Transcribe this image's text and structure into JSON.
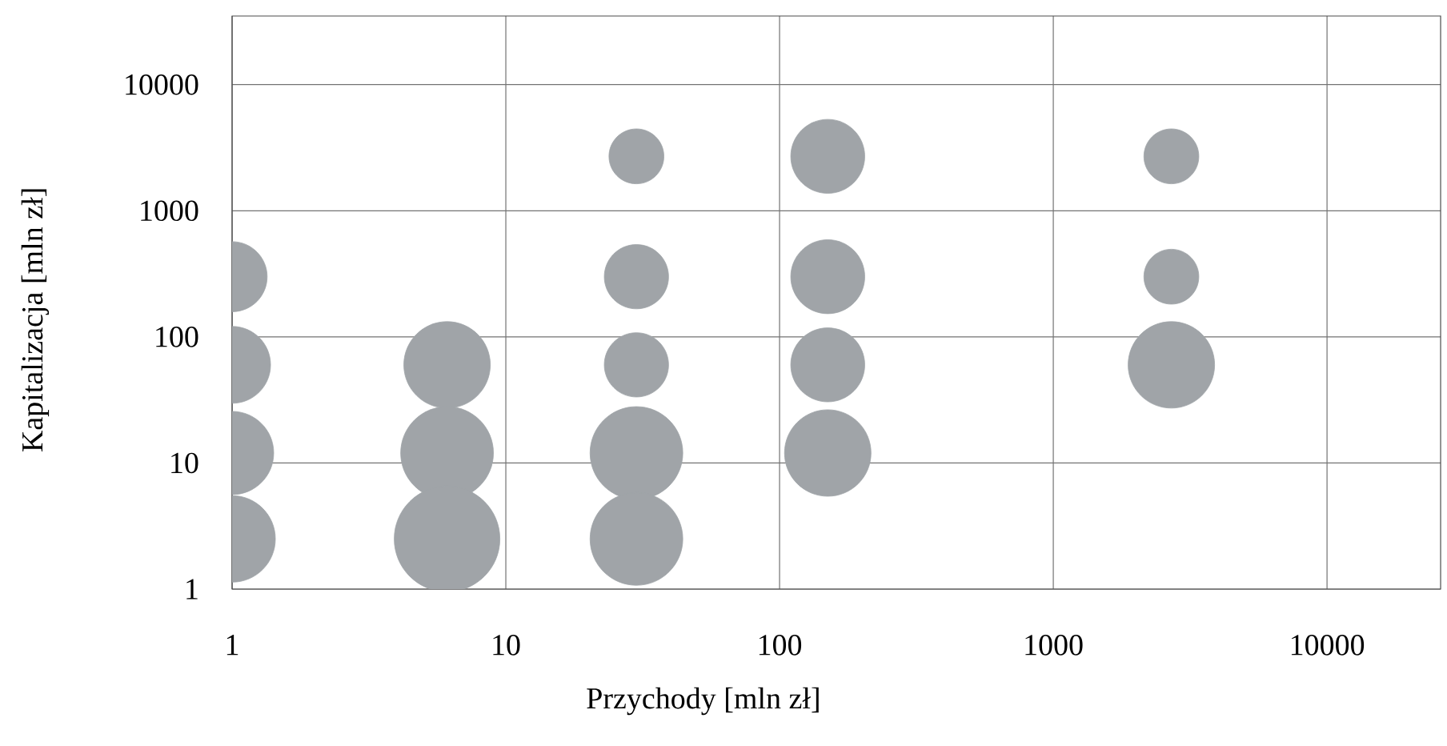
{
  "chart_data": {
    "type": "bubble",
    "xlabel": "Przychody [mln zł]",
    "ylabel": "Kapitalizacja [mln zł]",
    "log": "xy",
    "grid": true,
    "xlim": [
      1,
      26000
    ],
    "ylim": [
      1,
      35000
    ],
    "xticks": [
      1,
      10,
      100,
      1000,
      10000
    ],
    "yticks": [
      1,
      10,
      100,
      1000,
      10000
    ],
    "series": [
      {
        "color": "#a0a4a8",
        "x": [
          1,
          1,
          1,
          1,
          6.1,
          6.1,
          6.1,
          30,
          30,
          30,
          30,
          30,
          150,
          150,
          150,
          150,
          2700,
          2700,
          2700
        ],
        "values": [
          300,
          60,
          12,
          2.5,
          60,
          12,
          2.5,
          2700,
          300,
          60,
          12,
          2.5,
          2700,
          300,
          60,
          12,
          2700,
          300,
          60
        ],
        "sizes": [
          0.44,
          0.53,
          0.62,
          0.67,
          0.67,
          0.77,
          1,
          0.27,
          0.37,
          0.37,
          0.77,
          0.77,
          0.49,
          0.49,
          0.49,
          0.67,
          0.27,
          0.27,
          0.67
        ]
      }
    ]
  }
}
